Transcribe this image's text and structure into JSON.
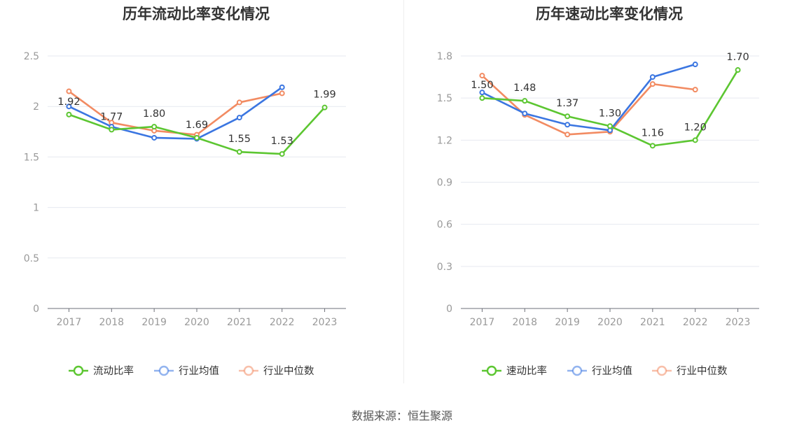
{
  "colors": {
    "green": "#5cc631",
    "blue": "#3b76e1",
    "orange": "#f28b62"
  },
  "source": "数据来源：恒生聚源",
  "chart_data": [
    {
      "type": "line",
      "title": "历年流动比率变化情况",
      "categories": [
        "2017",
        "2018",
        "2019",
        "2020",
        "2021",
        "2022",
        "2023"
      ],
      "ylim": [
        0,
        2.5
      ],
      "yticks": [
        "0",
        "0.5",
        "1",
        "1.5",
        "2",
        "2.5"
      ],
      "ytick_values": [
        0,
        0.5,
        1,
        1.5,
        2,
        2.5
      ],
      "grid": true,
      "legend_position": "bottom",
      "series": [
        {
          "name": "流动比率",
          "color": "#5cc631",
          "labeled": true,
          "values": [
            1.92,
            1.77,
            1.8,
            1.69,
            1.55,
            1.53,
            1.99
          ],
          "labels": [
            "1.92",
            "1.77",
            "1.80",
            "1.69",
            "1.55",
            "1.53",
            "1.99"
          ]
        },
        {
          "name": "行业均值",
          "color": "#3b76e1",
          "values": [
            2.0,
            1.8,
            1.69,
            1.68,
            1.89,
            2.19,
            null
          ]
        },
        {
          "name": "行业中位数",
          "color": "#f28b62",
          "values": [
            2.15,
            1.84,
            1.76,
            1.72,
            2.04,
            2.13,
            null
          ]
        }
      ]
    },
    {
      "type": "line",
      "title": "历年速动比率变化情况",
      "categories": [
        "2017",
        "2018",
        "2019",
        "2020",
        "2021",
        "2022",
        "2023"
      ],
      "ylim": [
        0,
        1.8
      ],
      "yticks": [
        "0",
        "0.3",
        "0.6",
        "0.9",
        "1.2",
        "1.5",
        "1.8"
      ],
      "ytick_values": [
        0,
        0.3,
        0.6,
        0.9,
        1.2,
        1.5,
        1.8
      ],
      "grid": true,
      "legend_position": "bottom",
      "series": [
        {
          "name": "速动比率",
          "color": "#5cc631",
          "labeled": true,
          "values": [
            1.5,
            1.48,
            1.37,
            1.3,
            1.16,
            1.2,
            1.7
          ],
          "labels": [
            "1.50",
            "1.48",
            "1.37",
            "1.30",
            "1.16",
            "1.20",
            "1.70"
          ]
        },
        {
          "name": "行业均值",
          "color": "#3b76e1",
          "values": [
            1.54,
            1.39,
            1.31,
            1.27,
            1.65,
            1.74,
            null
          ]
        },
        {
          "name": "行业中位数",
          "color": "#f28b62",
          "values": [
            1.66,
            1.38,
            1.24,
            1.26,
            1.6,
            1.56,
            null
          ]
        }
      ]
    }
  ]
}
